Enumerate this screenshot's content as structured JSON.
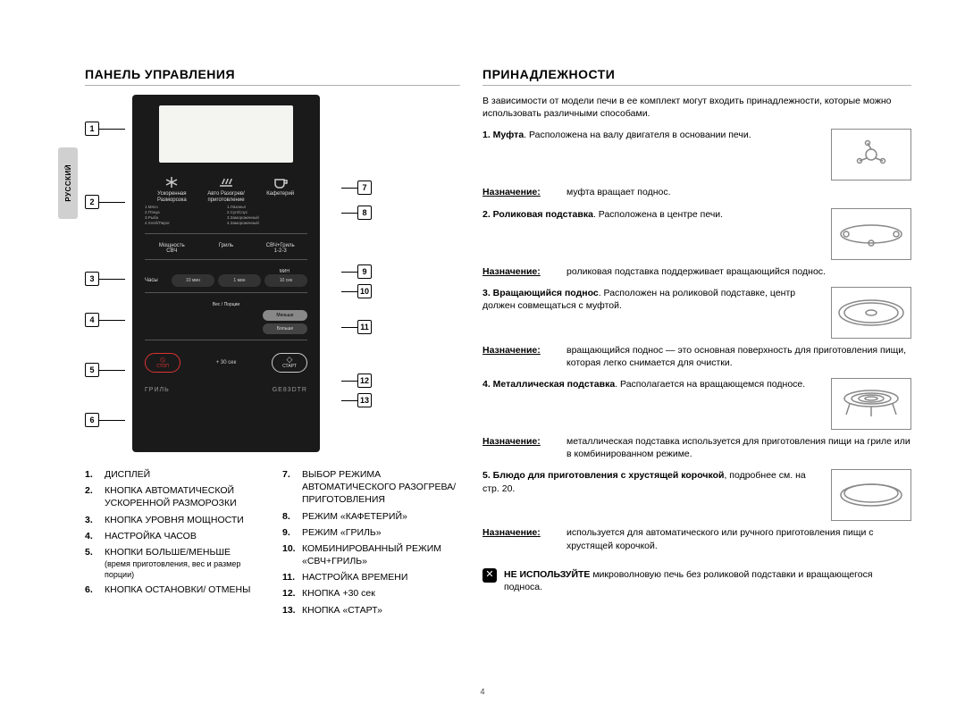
{
  "sideTab": "РУССКИЙ",
  "left": {
    "heading": "ПАНЕЛЬ УПРАВЛЕНИЯ",
    "panel": {
      "row1": {
        "a": "Ускоренная\nРазморозка",
        "b": "Авто Разогрев/\nприготовление",
        "c": "Кафетерий"
      },
      "menuListL": "1.Мясо\n2.Птица\n3.Рыба\n4.Хлеб/Пирог",
      "menuListR": "1.Лазанья\n2.Суп/Соус\n3.Замороженный\n4.Замороженный",
      "row2": {
        "a": "Мощность\nСВЧ",
        "b": "Гриль",
        "c": "СВЧ+Гриль\n1-2-3"
      },
      "clock": "Часы",
      "t1": "10 мин",
      "t2": "1 мин",
      "t3": "10 сек",
      "timeHdr": "МИН",
      "weight": "Вес / Порции",
      "less": "Меньше",
      "more": "Больше",
      "stop": "СТОП",
      "plus30": "+ 30 сек",
      "start": "СТАРТ",
      "brand": "ГРИЛЬ",
      "model": "GE83DTR"
    },
    "calloutsLeft": [
      1,
      2,
      3,
      4,
      5,
      6
    ],
    "calloutsRight": [
      7,
      8,
      9,
      10,
      11,
      12,
      13
    ],
    "legend": {
      "colA": [
        {
          "n": "1.",
          "t": "ДИСПЛЕЙ"
        },
        {
          "n": "2.",
          "t": "КНОПКА АВТОМАТИЧЕСКОЙ УСКОРЕННОЙ РАЗМОРОЗКИ"
        },
        {
          "n": "3.",
          "t": "КНОПКА УРОВНЯ МОЩНОСТИ"
        },
        {
          "n": "4.",
          "t": "НАСТРОЙКА ЧАСОВ"
        },
        {
          "n": "5.",
          "t": "КНОПКИ БОЛЬШЕ/МЕНЬШЕ",
          "sub": "(время приготовления, вес и размер порции)"
        },
        {
          "n": "6.",
          "t": "КНОПКА ОСТАНОВКИ/ ОТМЕНЫ"
        }
      ],
      "colB": [
        {
          "n": "7.",
          "t": "ВЫБОР РЕЖИМА АВТОМАТИЧЕСКОГО РАЗОГРЕВА/ ПРИГОТОВЛЕНИЯ"
        },
        {
          "n": "8.",
          "t": "РЕЖИМ «КАФЕТЕРИЙ»"
        },
        {
          "n": "9.",
          "t": "РЕЖИМ «ГРИЛЬ»"
        },
        {
          "n": "10.",
          "t": "КОМБИНИРОВАННЫЙ РЕЖИМ «СВЧ+ГРИЛЬ»"
        },
        {
          "n": "11.",
          "t": "НАСТРОЙКА ВРЕМЕНИ"
        },
        {
          "n": "12.",
          "t": "КНОПКА +30 сек"
        },
        {
          "n": "13.",
          "t": "КНОПКА «СТАРТ»"
        }
      ]
    }
  },
  "right": {
    "heading": "ПРИНАДЛЕЖНОСТИ",
    "intro": "В зависимости от модели печи в ее комплект могут входить принадлежности, которые можно использовать различными способами.",
    "purposeLabel": "Назначение:",
    "items": [
      {
        "title": "1. Муфта",
        "desc": ". Расположена на валу двигателя в основании печи.",
        "purpose": "муфта вращает поднос."
      },
      {
        "title": "2. Роликовая подставка",
        "desc": ". Расположена в центре печи.",
        "purpose": "роликовая подставка поддерживает вращающийся поднос."
      },
      {
        "title": "3. Вращающийся поднос",
        "desc": ". Расположен на роликовой подставке, центр должен совмещаться с муфтой.",
        "purpose": "вращающийся поднос — это основная поверхность для приготовления пищи, которая легко снимается для очистки."
      },
      {
        "title": "4. Металлическая подставка",
        "desc": ". Располагается на вращающемся подносе.",
        "purpose": "металлическая подставка используется для приготовления пищи на гриле или в комбинированном режиме."
      },
      {
        "title": "5. Блюдо для приготовления с хрустящей корочкой",
        "desc": ", подробнее см. на стр. 20.",
        "purpose": "используется для автоматического или ручного приготовления пищи с хрустящей корочкой."
      }
    ],
    "warning": {
      "bold": "НЕ ИСПОЛЬЗУЙТЕ",
      "rest": " микроволновую печь без роликовой подставки и вращающегося подноса."
    }
  },
  "pageNumber": "4"
}
